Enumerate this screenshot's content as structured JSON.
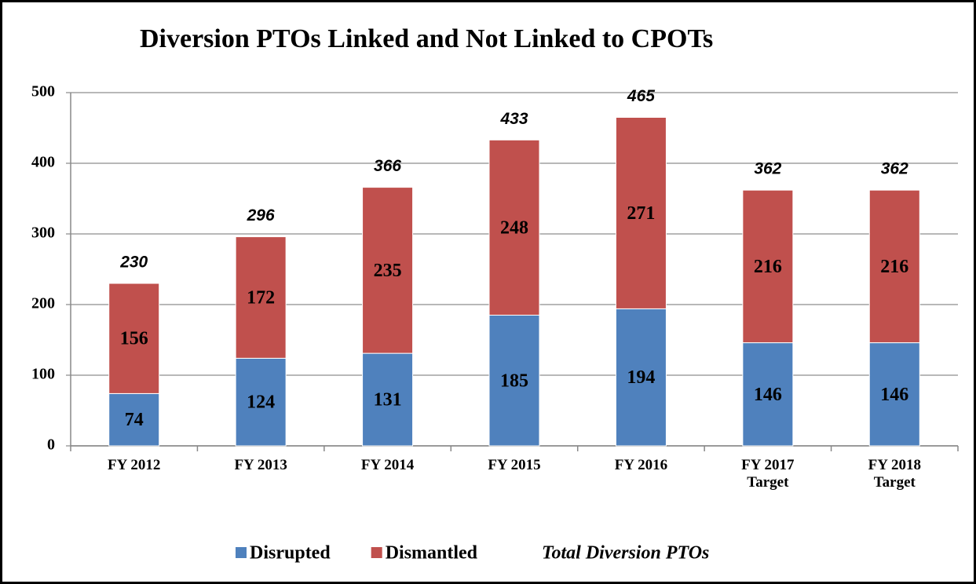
{
  "chart_data": {
    "type": "stacked_bar",
    "title": "Diversion PTOs Linked and Not Linked to CPOTs",
    "categories": [
      "FY 2012",
      "FY 2013",
      "FY 2014",
      "FY 2015",
      "FY 2016",
      "FY 2017 Target",
      "FY 2018 Target"
    ],
    "series": [
      {
        "name": "Disrupted",
        "color": "#4f81bd",
        "values": [
          74,
          124,
          131,
          185,
          194,
          146,
          146
        ]
      },
      {
        "name": "Dismantled",
        "color": "#c0504d",
        "values": [
          156,
          172,
          235,
          248,
          271,
          216,
          216
        ]
      }
    ],
    "totals": {
      "name": "Total Diversion PTOs",
      "values": [
        230,
        296,
        366,
        433,
        465,
        362,
        362
      ]
    },
    "ylim": [
      0,
      500
    ],
    "yticks": [
      0,
      100,
      200,
      300,
      400,
      500
    ],
    "grid": true,
    "legend": "bottom"
  }
}
